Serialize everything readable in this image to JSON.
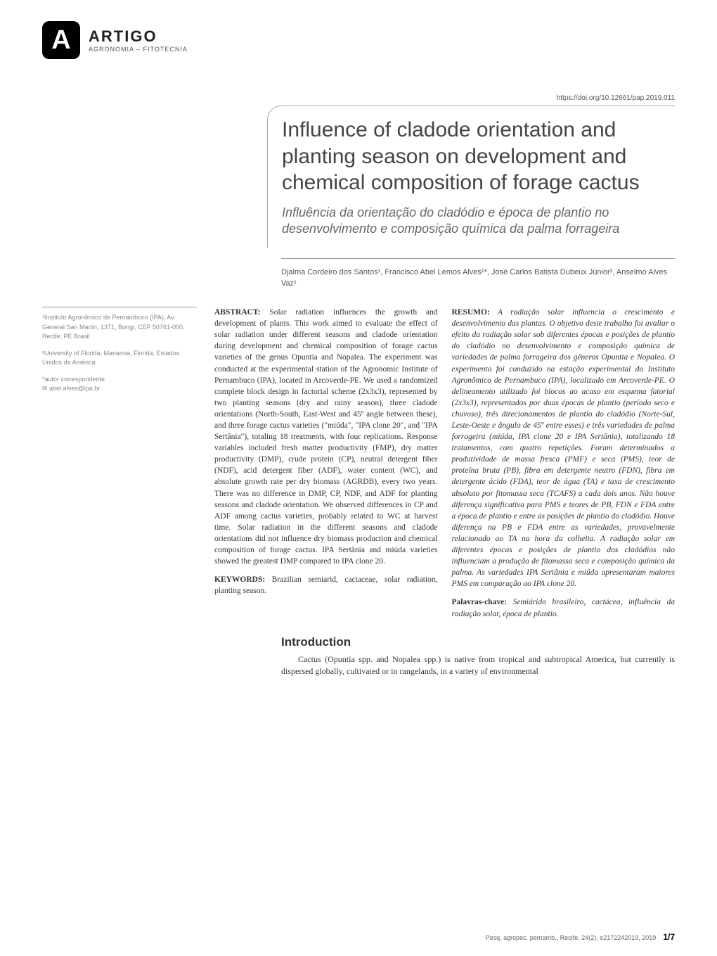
{
  "logo": {
    "letter": "A",
    "title": "ARTIGO",
    "subtitle": "AGRONOMIA – FITOTECNIA"
  },
  "doi": "https://doi.org/10.12661/pap.2019.011",
  "title_en": "Influence of cladode orientation and planting season on development and chemical composition of forage cactus",
  "title_pt": "Influência da orientação do cladódio e época de plantio no desenvolvimento e composição química da palma forrageira",
  "authors": "Djalma Cordeiro dos Santos¹, Francisco Abel Lemos Alves¹*, José Carlos Batista Dubeux Júnior², Anselmo Alves Vaz¹",
  "affiliations": {
    "a1": "¹Instituto Agronômico de Pernambuco (IPA), Av. General San Martin, 1371, Bongi, CEP 50761-000, Recife, PE Brasil",
    "a2": "²University of Florida, Marianna, Florida, Estados Unidos da América",
    "corr_label": "*autor correspondente",
    "corr_email": "✉ abel.alves@ipa.br"
  },
  "abstract": {
    "head": "ABSTRACT:",
    "body": " Solar radiation influences the growth and development of plants. This work aimed to evaluate the effect of solar radiation under different seasons and cladode orientation during development and chemical composition of forage cactus varieties of the genus Opuntia and Nopalea. The experiment was conducted at the experimental station of the Agronomic Institute of Pernambuco (IPA), located in Arcoverde-PE. We used a randomized complete block design in factorial scheme (2x3x3), represented by two planting seasons (dry and rainy season), three cladode orientations (North-South, East-West and 45º angle between these), and three forage cactus varieties (\"miúda\", \"IPA clone 20\", and \"IPA Sertânia\"), totaling 18 treatments, with four replications. Response variables included fresh matter productivity (FMP), dry matter productivity (DMP), crude protein (CP), neutral detergent fiber (NDF), acid detergent fiber (ADF), water content (WC), and absolute growth rate per dry biomass (AGRDB), every two years. There was no difference in DMP, CP, NDF, and ADF for planting seasons and cladode orientation. We observed differences in CP and ADF among cactus varieties, probably related to WC at harvest time. Solar radiation in the different seasons and cladode orientations did not influence dry biomass production and chemical composition of forage cactus. IPA Sertânia and miúda varieties showed the greatest DMP compared to IPA clone 20.",
    "kw_head": "KEYWORDS:",
    "kw_body": " Brazilian semiarid, cactaceae, solar radiation, planting season."
  },
  "resumo": {
    "head": "RESUMO:",
    "body": " A radiação solar influencia o crescimento e desenvolvimento das plantas. O objetivo deste trabalho foi avaliar o efeito da radiação solar sob diferentes épocas e posições de plantio do cladódio no desenvolvimento e composição química de variedades de palma forrageira dos gêneros Opuntia e Nopalea. O experimento foi conduzido na estação experimental do Instituto Agronômico de Pernambuco (IPA), localizado em Arcoverde-PE. O delineamento utilizado foi blocos ao acaso em esquema fatorial (2x3x3), representados por duas épocas de plantio (período seco e chuvoso), três direcionamentos de plantio do cladódio (Norte-Sul, Leste-Oeste e ângulo de 45º entre esses) e três variedades de palma forrageira (miúda, IPA clone 20 e IPA Sertânia), totalizando 18 tratamentos, com quatro repetições. Foram determinados a produtividade de massa fresca (PMF) e seca (PMS), teor de proteína bruta (PB), fibra em detergente neutro (FDN), fibra em detergente ácido (FDA), teor de água (TA) e taxa de crescimento absoluto por fitomassa seca (TCAFS) a cada dois anos. Não houve diferença significativa para PMS e teores de PB, FDN e FDA entre a época de plantio e entre as posições de plantio do cladódio. Houve diferença na PB e FDA entre as variedades, provavelmente relacionado ao TA na hora da colheita. A radiação solar em diferentes épocas e posições de plantio dos cladódios não influenciam a produção de fitomassa seca e composição química da palma. As variedades IPA Sertânia e miúda apresentaram maiores PMS em comparação ao IPA clone 20.",
    "kw_head": "Palavras-chave:",
    "kw_body": " Semiárido brasileiro, cactácea, influência da radiação solar, época de plantio."
  },
  "intro": {
    "head": "Introduction",
    "body": "Cactus (Opuntia spp. and Nopalea spp.) is native from tropical and subtropical America, but currently is dispersed globally, cultivated or in rangelands, in a variety of environmental"
  },
  "footer": {
    "citation": "Pesq. agropec. pernamb., Recife, 24(2), e2172242019, 2019",
    "page": "1/7"
  },
  "colors": {
    "logo_bg": "#000000",
    "logo_fg": "#ffffff",
    "text_main": "#333333",
    "text_light": "#888888",
    "border": "#999999"
  }
}
